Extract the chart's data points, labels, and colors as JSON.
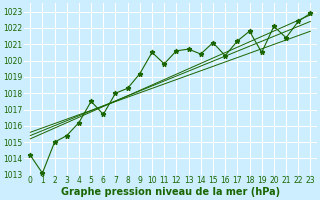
{
  "xlabel": "Graphe pression niveau de la mer (hPa)",
  "bg_color": "#cceeff",
  "grid_color": "#ffffff",
  "line_color": "#1a6600",
  "x_values": [
    0,
    1,
    2,
    3,
    4,
    5,
    6,
    7,
    8,
    9,
    10,
    11,
    12,
    13,
    14,
    15,
    16,
    17,
    18,
    19,
    20,
    21,
    22,
    23
  ],
  "y_zigzag": [
    1014.2,
    1013.1,
    1015.0,
    1015.4,
    1016.2,
    1017.5,
    1016.7,
    1018.0,
    1018.3,
    1019.2,
    1020.5,
    1019.8,
    1020.6,
    1020.7,
    1020.4,
    1021.1,
    1020.3,
    1021.2,
    1021.8,
    1020.5,
    1022.1,
    1021.4,
    1022.4,
    1022.9
  ],
  "trend_lines": [
    {
      "x": [
        0,
        23
      ],
      "y": [
        1015.2,
        1022.8
      ]
    },
    {
      "x": [
        0,
        23
      ],
      "y": [
        1015.4,
        1022.4
      ]
    },
    {
      "x": [
        0,
        23
      ],
      "y": [
        1015.6,
        1021.8
      ]
    }
  ],
  "ylim": [
    1013.0,
    1023.5
  ],
  "xlim": [
    -0.5,
    23.5
  ],
  "yticks": [
    1013,
    1014,
    1015,
    1016,
    1017,
    1018,
    1019,
    1020,
    1021,
    1022,
    1023
  ],
  "xticks": [
    0,
    1,
    2,
    3,
    4,
    5,
    6,
    7,
    8,
    9,
    10,
    11,
    12,
    13,
    14,
    15,
    16,
    17,
    18,
    19,
    20,
    21,
    22,
    23
  ],
  "xlabel_fontsize": 7,
  "tick_fontsize": 5.5
}
